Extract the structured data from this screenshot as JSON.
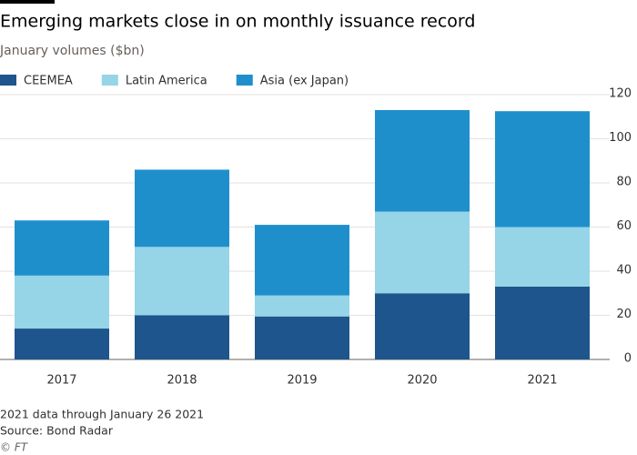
{
  "chart_data": {
    "type": "stacked-bar",
    "title": "Emerging markets close in on monthly issuance record",
    "subtitle": "January volumes ($bn)",
    "categories": [
      "2017",
      "2018",
      "2019",
      "2020",
      "2021"
    ],
    "series": [
      {
        "name": "CEEMEA",
        "color": "#1e558c",
        "values": [
          14,
          20,
          19.5,
          30,
          33
        ]
      },
      {
        "name": "Latin America",
        "color": "#96d4e8",
        "values": [
          24,
          31,
          9.5,
          37,
          27
        ]
      },
      {
        "name": "Asia (ex Japan)",
        "color": "#1f8fcc",
        "values": [
          25,
          35,
          32,
          46,
          52.5
        ]
      }
    ],
    "ylim": [
      0,
      120
    ],
    "yticks": [
      0,
      20,
      40,
      60,
      80,
      100,
      120
    ],
    "grid": true,
    "note": "2021 data through January 26 2021",
    "source": "Source: Bond Radar",
    "credit": "© FT"
  }
}
